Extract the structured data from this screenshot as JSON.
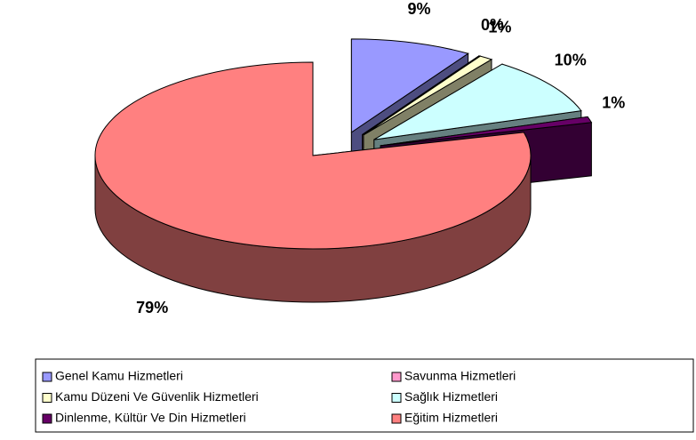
{
  "chart_data": {
    "type": "pie",
    "categories": [
      "Genel Kamu Hizmetleri",
      "Savunma Hizmetleri",
      "Kamu Düzeni Ve Güvenlik Hizmetleri",
      "Sağlık Hizmetleri",
      "Dinlenme, Kültür Ve Din Hizmetleri",
      "Eğitim Hizmetleri"
    ],
    "values": [
      9,
      0,
      1,
      10,
      1,
      79
    ],
    "value_labels": [
      "9%",
      "0%",
      "1%",
      "10%",
      "1%",
      "79%"
    ],
    "colors": [
      "#9999ff",
      "#ff99cc",
      "#ffffcc",
      "#ccffff",
      "#660066",
      "#ff8080"
    ],
    "legend": "bottom"
  }
}
